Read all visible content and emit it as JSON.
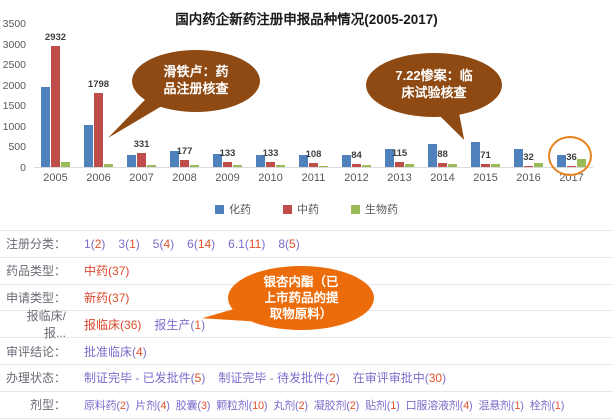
{
  "title": "国内药企新药注册申报品种情况(2005-2017)",
  "chart_data": {
    "type": "bar",
    "title": "国内药企新药注册申报品种情况(2005-2017)",
    "categories": [
      "2005",
      "2006",
      "2007",
      "2008",
      "2009",
      "2010",
      "2011",
      "2012",
      "2013",
      "2014",
      "2015",
      "2016",
      "2017"
    ],
    "series": [
      {
        "key": "chem",
        "name": "化药",
        "color": "#4F81BD",
        "values": [
          1950,
          1010,
          280,
          380,
          310,
          280,
          295,
          300,
          430,
          550,
          600,
          450,
          290
        ]
      },
      {
        "key": "tcm",
        "name": "中药",
        "color": "#BF4E4B",
        "show_labels": true,
        "values": [
          2932,
          1798,
          331,
          177,
          133,
          133,
          108,
          84,
          115,
          88,
          71,
          32,
          36
        ]
      },
      {
        "key": "bio",
        "name": "生物药",
        "color": "#9BBB59",
        "values": [
          120,
          80,
          40,
          50,
          45,
          40,
          35,
          40,
          65,
          75,
          85,
          90,
          190
        ]
      }
    ],
    "xlabel": "",
    "ylabel": "",
    "ylim": [
      0,
      3500
    ],
    "yticks": [
      "0",
      "500",
      "1000",
      "1500",
      "2000",
      "2500",
      "3000",
      "3500"
    ],
    "grid": false,
    "legend_position": "bottom"
  },
  "annotations": {
    "bubble_waterloo": {
      "lines": [
        "滑铁卢：药",
        "品注册核查"
      ],
      "color": "#8E4A12"
    },
    "bubble_722": {
      "lines": [
        "7.22惨案：临",
        "床试验核查"
      ],
      "color": "#8E4A12"
    },
    "bubble_ginkgo": {
      "lines": [
        "银杏内酯（已",
        "上市药品的提",
        "取物原料）"
      ],
      "color": "#EC6C0C"
    },
    "circled_year": "2017",
    "circled_value": "36",
    "circle_color": "#E8821E"
  },
  "filters": {
    "rows": [
      {
        "label": "注册分类：",
        "items": [
          {
            "name": "1",
            "count": "2"
          },
          {
            "name": "3",
            "count": "1"
          },
          {
            "name": "5",
            "count": "4"
          },
          {
            "name": "6",
            "count": "14"
          },
          {
            "name": "6.1",
            "count": "11"
          },
          {
            "name": "8",
            "count": "5"
          }
        ]
      },
      {
        "label": "药品类型：",
        "items": [
          {
            "name": "中药",
            "count": "37",
            "active": true
          }
        ]
      },
      {
        "label": "申请类型：",
        "items": [
          {
            "name": "新药",
            "count": "37",
            "active": true
          }
        ]
      },
      {
        "label": "报临床/报...",
        "items": [
          {
            "name": "报临床",
            "count": "36",
            "active": true
          },
          {
            "name": "报生产",
            "count": "1"
          }
        ]
      },
      {
        "label": "审评结论：",
        "items": [
          {
            "name": "批准临床",
            "count": "4"
          }
        ]
      },
      {
        "label": "办理状态：",
        "items": [
          {
            "name": "制证完毕 - 已发批件",
            "count": "5"
          },
          {
            "name": "制证完毕 - 待发批件",
            "count": "2"
          },
          {
            "name": "在审评审批中",
            "count": "30"
          }
        ]
      },
      {
        "label": "剂型：",
        "items": [
          {
            "name": "原料药",
            "count": "2"
          },
          {
            "name": "片剂",
            "count": "4"
          },
          {
            "name": "胶囊",
            "count": "3"
          },
          {
            "name": "颗粒剂",
            "count": "10"
          },
          {
            "name": "丸剂",
            "count": "2"
          },
          {
            "name": "凝胶剂",
            "count": "2"
          },
          {
            "name": "贴剂",
            "count": "1"
          },
          {
            "name": "口服溶液剂",
            "count": "4"
          },
          {
            "name": "混悬剂",
            "count": "1"
          },
          {
            "name": "栓剂",
            "count": "1"
          }
        ]
      }
    ]
  }
}
